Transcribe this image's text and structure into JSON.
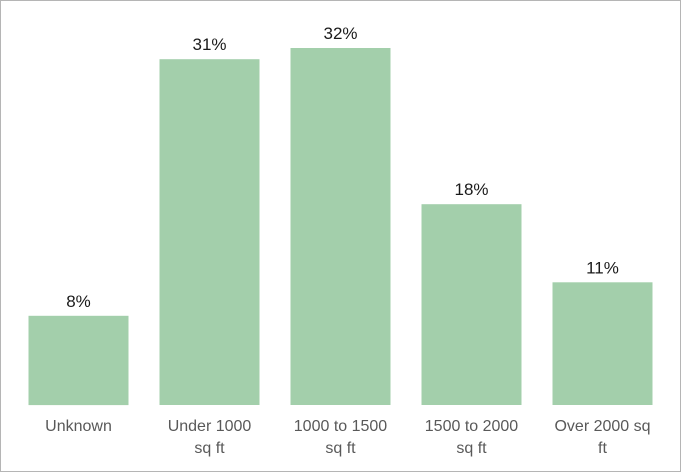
{
  "chart_data": {
    "type": "bar",
    "categories": [
      [
        "Unknown"
      ],
      [
        "Under 1000",
        "sq ft"
      ],
      [
        "1000 to 1500",
        "sq ft"
      ],
      [
        "1500 to 2000",
        "sq ft"
      ],
      [
        "Over 2000 sq",
        "ft"
      ]
    ],
    "values": [
      8,
      31,
      32,
      18,
      11
    ],
    "data_labels": [
      "8%",
      "31%",
      "32%",
      "18%",
      "11%"
    ],
    "title": "",
    "xlabel": "",
    "ylabel": "",
    "ylim": [
      0,
      32
    ],
    "value_unit": "%",
    "grid": false,
    "legend": "none",
    "colors": {
      "bar": "#a3cfab",
      "label_text": "#1a1a1a",
      "tick_text": "#595959",
      "border": "#b5b5b5"
    }
  }
}
